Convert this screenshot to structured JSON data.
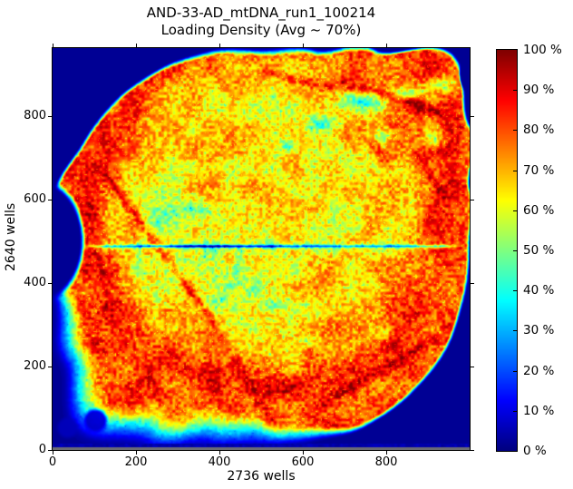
{
  "title": {
    "line1": "AND-33-AD_mtDNA_run1_100214",
    "line2": "Loading Density (Avg ~ 70%)"
  },
  "axes": {
    "xlabel": "2736 wells",
    "ylabel": "2640 wells",
    "x_ticks": [
      0,
      200,
      400,
      600,
      800
    ],
    "y_ticks": [
      0,
      200,
      400,
      600,
      800
    ],
    "x_max": 1000,
    "y_max": 963
  },
  "colorbar": {
    "tick_labels": [
      "100 %",
      "90 %",
      "80 %",
      "70 %",
      "60 %",
      "50 %",
      "40 %",
      "30 %",
      "20 %",
      "10 %",
      "0 %"
    ],
    "tick_values": [
      100,
      90,
      80,
      70,
      60,
      50,
      40,
      30,
      20,
      10,
      0
    ],
    "min_pct": 0,
    "max_pct": 100,
    "colormap": "jet"
  },
  "chart_data": {
    "type": "heatmap",
    "title": "AND-33-AD_mtDNA_run1_100214",
    "subtitle": "Loading Density (Avg ~ 70%)",
    "average_loading_pct": 70,
    "chip_wells_x": 2736,
    "chip_wells_y": 2640,
    "x_range": [
      0,
      1000
    ],
    "y_range": [
      0,
      963
    ],
    "value_range_pct": [
      0,
      100
    ],
    "colormap": "jet",
    "background_value_pct": 0,
    "features": [
      "roughly circular chip region of ~70% average loading (orange/red) on a 0% dark-navy background",
      "yellow ~60-70% core disc surrounded by a darker red ~80-90% ring toward the chip edges",
      "horizontal low-density (20-40%) scan line at y = 480 wells spanning nearly the full chip width",
      "semicircular 0% notch intruding from the left edge near y = 460 wells",
      "small 0% notch on the right edge near y = 900 wells",
      "broad 10-40% blue/cyan fade in the bottom-left quadrant with two dark ~5% spots near the corner",
      "cyan 30-45% patches and dark-red ~95% streaks in the upper-right quadrant",
      "thin cyan/green low-density fringe along the chip boundary and along the top edge",
      "dark 0% strip along the bottom edge of the image"
    ],
    "render": {
      "center": [
        230,
        218
      ],
      "radii_deg15": [
        231,
        232,
        235,
        233,
        231,
        224,
        224,
        235,
        262,
        295,
        260,
        240,
        238,
        238,
        229,
        229,
        227,
        224,
        218,
        226,
        252,
        300,
        267,
        240
      ],
      "base_value": 72,
      "disc_center": [
        235,
        180
      ],
      "notch": [
        -12,
        212,
        46,
        66
      ],
      "bite": [
        463,
        27,
        15,
        26
      ],
      "bottom_strip_y": 436,
      "spine_gray_y": 440,
      "spine_gray_rgb": [
        108,
        108,
        116
      ],
      "line": {
        "y": 218,
        "x0": 28,
        "x1": 452,
        "amp": 30,
        "peak_amp": 17,
        "peak_x": 175
      },
      "corner_blobs": [
        [
          16,
          418,
          14
        ],
        [
          47,
          410,
          16
        ]
      ],
      "blobs": [
        [
          345,
          58,
          26,
          12,
          -32
        ],
        [
          300,
          82,
          16,
          10,
          -26
        ],
        [
          392,
          48,
          18,
          9,
          -30
        ],
        [
          420,
          100,
          11,
          8,
          -26
        ],
        [
          363,
          97,
          12,
          8,
          -20
        ],
        [
          258,
          106,
          10,
          7,
          -16
        ],
        [
          120,
          178,
          24,
          15,
          -13
        ],
        [
          96,
          238,
          18,
          12,
          -11
        ],
        [
          205,
          262,
          55,
          38,
          -8
        ],
        [
          250,
          60,
          110,
          28,
          -5
        ],
        [
          140,
          210,
          65,
          50,
          -6
        ],
        [
          282,
          322,
          9,
          7,
          -18
        ],
        [
          242,
          282,
          8,
          6,
          -14
        ],
        [
          365,
          314,
          7,
          6,
          -16
        ],
        [
          430,
          40,
          14,
          9,
          -20
        ]
      ],
      "streaks": [
        [
          320,
          38,
          424,
          70,
          5,
          18
        ],
        [
          232,
          26,
          310,
          44,
          3,
          13
        ],
        [
          60,
          142,
          170,
          292,
          3.5,
          16
        ],
        [
          170,
          292,
          252,
          428,
          4,
          9
        ],
        [
          298,
          392,
          420,
          320,
          4,
          13
        ],
        [
          402,
          118,
          428,
          162,
          4,
          12
        ],
        [
          352,
          104,
          368,
          126,
          5,
          15
        ],
        [
          58,
          290,
          140,
          420,
          6,
          8
        ]
      ],
      "arc_ring": [
        150,
        232,
        56,
        8
      ],
      "seed": 7
    }
  }
}
